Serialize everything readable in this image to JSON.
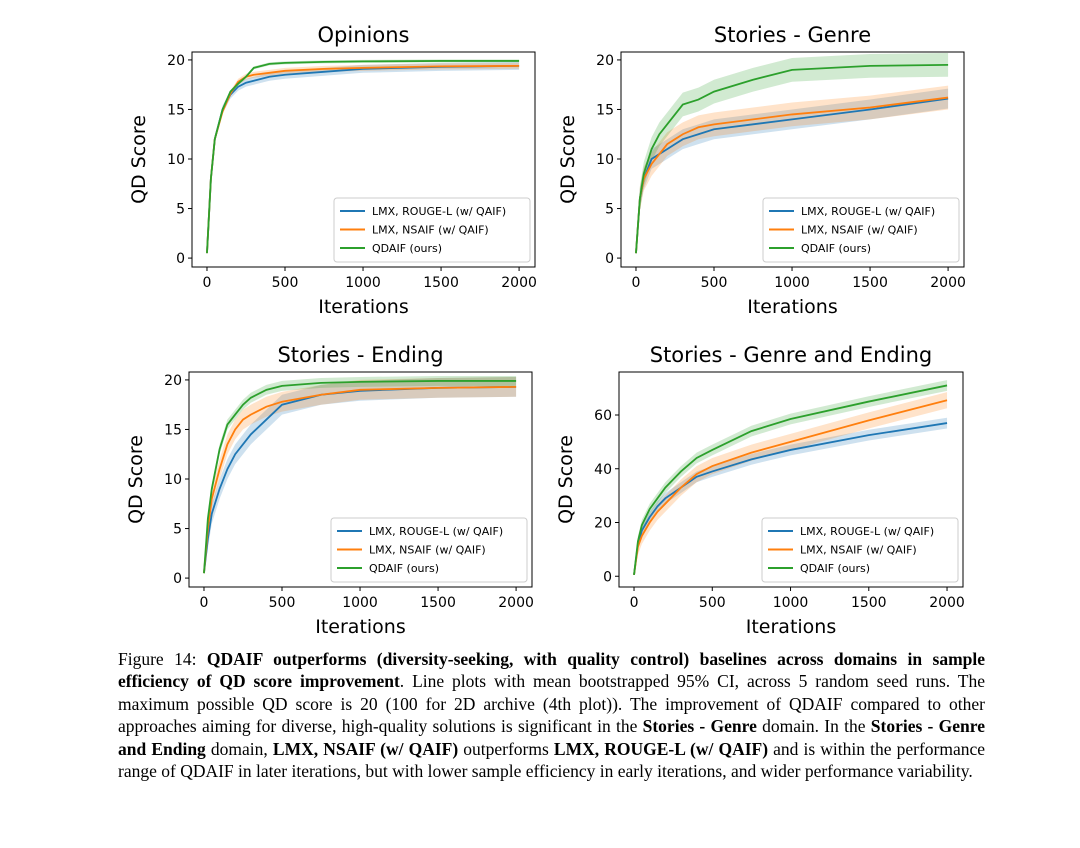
{
  "chart_data": [
    {
      "type": "line",
      "title": "Opinions",
      "xlabel": "Iterations",
      "ylabel": "QD Score",
      "xlim": [
        -96,
        2102
      ],
      "ylim": [
        -0.9,
        20.8
      ],
      "xticks": [
        0,
        500,
        1000,
        1500,
        2000
      ],
      "yticks": [
        0,
        5,
        10,
        15,
        20
      ],
      "legend_position": "lower-right",
      "x": [
        0,
        25,
        50,
        100,
        150,
        200,
        250,
        300,
        400,
        500,
        750,
        1000,
        1500,
        2000
      ],
      "series": [
        {
          "name": "LMX, ROUGE-L (w/ QAIF)",
          "color": "#1f77b4",
          "ci": 0.4,
          "values": [
            0.5,
            8,
            12,
            15,
            16.5,
            17.3,
            17.7,
            17.9,
            18.3,
            18.5,
            18.8,
            19.1,
            19.3,
            19.4
          ]
        },
        {
          "name": "LMX, NSAIF (w/ QAIF)",
          "color": "#ff7f0e",
          "ci": 0.3,
          "values": [
            0.5,
            8,
            12,
            14.8,
            16.6,
            17.8,
            18.3,
            18.5,
            18.7,
            18.9,
            19.1,
            19.2,
            19.35,
            19.4
          ]
        },
        {
          "name": "QDAIF (ours)",
          "color": "#2ca02c",
          "ci": 0.15,
          "values": [
            0.5,
            8,
            12,
            15,
            16.8,
            17.6,
            18.3,
            19.2,
            19.6,
            19.7,
            19.8,
            19.85,
            19.9,
            19.9
          ]
        }
      ]
    },
    {
      "type": "line",
      "title": "Stories - Genre",
      "xlabel": "Iterations",
      "ylabel": "QD Score",
      "xlim": [
        -96,
        2102
      ],
      "ylim": [
        -0.9,
        20.8
      ],
      "xticks": [
        0,
        500,
        1000,
        1500,
        2000
      ],
      "yticks": [
        0,
        5,
        10,
        15,
        20
      ],
      "legend_position": "lower-right",
      "x": [
        0,
        25,
        50,
        100,
        150,
        200,
        250,
        300,
        400,
        500,
        750,
        1000,
        1500,
        2000
      ],
      "series": [
        {
          "name": "LMX, ROUGE-L (w/ QAIF)",
          "color": "#1f77b4",
          "ci": 1.0,
          "values": [
            0.5,
            6,
            8,
            10,
            10.5,
            11,
            11.5,
            12,
            12.5,
            13,
            13.5,
            14,
            15,
            16.1
          ]
        },
        {
          "name": "LMX, NSAIF (w/ QAIF)",
          "color": "#ff7f0e",
          "ci": 1.2,
          "values": [
            0.5,
            6,
            8,
            9.5,
            10.5,
            11.5,
            12,
            12.5,
            13.2,
            13.5,
            14,
            14.5,
            15.2,
            16.2
          ]
        },
        {
          "name": "QDAIF (ours)",
          "color": "#2ca02c",
          "ci": 1.2,
          "values": [
            0.5,
            6,
            8.5,
            11,
            12.5,
            13.5,
            14.5,
            15.5,
            16,
            16.8,
            18,
            19,
            19.4,
            19.5
          ]
        }
      ]
    },
    {
      "type": "line",
      "title": "Stories - Ending",
      "xlabel": "Iterations",
      "ylabel": "QD Score",
      "xlim": [
        -96,
        2102
      ],
      "ylim": [
        -0.9,
        20.8
      ],
      "xticks": [
        0,
        500,
        1000,
        1500,
        2000
      ],
      "yticks": [
        0,
        5,
        10,
        15,
        20
      ],
      "legend_position": "lower-right",
      "x": [
        0,
        25,
        50,
        100,
        150,
        200,
        250,
        300,
        400,
        500,
        750,
        1000,
        1500,
        2000
      ],
      "series": [
        {
          "name": "LMX, ROUGE-L (w/ QAIF)",
          "color": "#1f77b4",
          "ci": 1.0,
          "values": [
            0.5,
            4,
            6.5,
            9,
            11,
            12.5,
            13.5,
            14.5,
            16,
            17.5,
            18.5,
            18.9,
            19.2,
            19.3
          ]
        },
        {
          "name": "LMX, NSAIF (w/ QAIF)",
          "color": "#ff7f0e",
          "ci": 1.0,
          "values": [
            0.5,
            5,
            8,
            11,
            13.5,
            15,
            16,
            16.5,
            17.3,
            17.8,
            18.5,
            19,
            19.2,
            19.3
          ]
        },
        {
          "name": "QDAIF (ours)",
          "color": "#2ca02c",
          "ci": 0.5,
          "values": [
            0.5,
            6,
            9,
            13,
            15.5,
            16.5,
            17.5,
            18.2,
            19,
            19.4,
            19.7,
            19.8,
            19.9,
            19.9
          ]
        }
      ]
    },
    {
      "type": "line",
      "title": "Stories - Genre and Ending",
      "xlabel": "Iterations",
      "ylabel": "QD Score",
      "xlim": [
        -96,
        2102
      ],
      "ylim": [
        -4,
        76
      ],
      "xticks": [
        0,
        500,
        1000,
        1500,
        2000
      ],
      "yticks": [
        0,
        20,
        40,
        60
      ],
      "legend_position": "lower-right",
      "x": [
        0,
        25,
        50,
        100,
        150,
        200,
        250,
        300,
        400,
        500,
        750,
        1000,
        1500,
        2000
      ],
      "series": [
        {
          "name": "LMX, ROUGE-L (w/ QAIF)",
          "color": "#1f77b4",
          "ci": 2,
          "values": [
            0.5,
            12,
            17,
            22,
            26,
            29,
            31,
            33,
            37,
            39,
            43.5,
            47,
            52.5,
            57
          ]
        },
        {
          "name": "LMX, NSAIF (w/ QAIF)",
          "color": "#ff7f0e",
          "ci": 3,
          "values": [
            0.5,
            11,
            15,
            20,
            24,
            27,
            30,
            33,
            38,
            41,
            46,
            50,
            58,
            65.5
          ]
        },
        {
          "name": "QDAIF (ours)",
          "color": "#2ca02c",
          "ci": 2,
          "values": [
            0.5,
            13,
            19,
            25,
            29,
            33,
            36,
            39,
            44,
            47,
            54,
            58.5,
            65,
            71
          ]
        }
      ]
    }
  ],
  "caption": {
    "label": "Figure 14:",
    "bold_lead": "QDAIF outperforms (diversity-seeking, with quality control) baselines across domains in sample efficiency of QD score improvement",
    "text1": ". Line plots with mean bootstrapped 95% CI, across 5 random seed runs. The maximum possible QD score is 20 (100 for 2D archive (4th plot)). The improvement of QDAIF compared to other approaches aiming for diverse, high-quality solutions is significant in the ",
    "bold2": "Stories - Genre",
    "text2": " domain. In the ",
    "bold3": "Stories - Genre and Ending",
    "text3": " domain, ",
    "bold4": "LMX, NSAIF (w/ QAIF)",
    "text4": " outperforms ",
    "bold5": "LMX, ROUGE-L (w/ QAIF)",
    "text5": " and is within the performance range of QDAIF in later iterations, but with lower sample efficiency in early iterations, and wider performance variability."
  }
}
